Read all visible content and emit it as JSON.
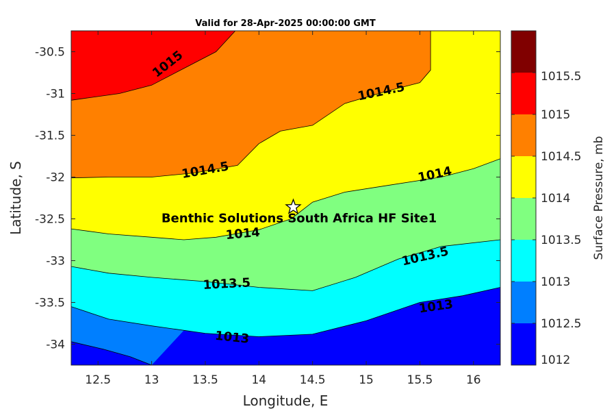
{
  "chart_data": {
    "type": "contour",
    "title": "Valid for 28-Apr-2025 00:00:00 GMT",
    "xlabel": "Longitude, E",
    "ylabel": "Latitude, S",
    "xlim": [
      12.25,
      16.25
    ],
    "ylim": [
      -34.25,
      -30.25
    ],
    "xticks": [
      "12.5",
      "13",
      "13.5",
      "14",
      "14.5",
      "15",
      "15.5",
      "16"
    ],
    "yticks": [
      "-30.5",
      "-31",
      "-31.5",
      "-32",
      "-32.5",
      "-33",
      "-33.5",
      "-34"
    ],
    "colorbar": {
      "label": "Surface Pressure, mb",
      "ticks": [
        "1012",
        "1012.5",
        "1013",
        "1013.5",
        "1014",
        "1014.5",
        "1015",
        "1015.5"
      ],
      "bands": [
        {
          "from": 1012.0,
          "to": 1012.5,
          "color": "#0000ff"
        },
        {
          "from": 1012.5,
          "to": 1013.0,
          "color": "#007fff"
        },
        {
          "from": 1013.0,
          "to": 1013.5,
          "color": "#00ffff"
        },
        {
          "from": 1013.5,
          "to": 1014.0,
          "color": "#80ff80"
        },
        {
          "from": 1014.0,
          "to": 1014.5,
          "color": "#ffff00"
        },
        {
          "from": 1014.5,
          "to": 1015.0,
          "color": "#ff8000"
        },
        {
          "from": 1015.0,
          "to": 1015.5,
          "color": "#ff0000"
        },
        {
          "from": 1015.5,
          "to": 1016.0,
          "color": "#800000"
        }
      ]
    },
    "contours": [
      {
        "level": 1012.5,
        "points": [
          [
            12.25,
            -33.97
          ],
          [
            12.55,
            -34.06
          ],
          [
            12.8,
            -34.15
          ],
          [
            13.0,
            -34.25
          ]
        ]
      },
      {
        "level": 1013.0,
        "points": [
          [
            12.25,
            -33.55
          ],
          [
            12.6,
            -33.7
          ],
          [
            13.0,
            -33.78
          ],
          [
            13.5,
            -33.87
          ],
          [
            14.0,
            -33.91
          ],
          [
            14.5,
            -33.88
          ],
          [
            15.0,
            -33.72
          ],
          [
            15.5,
            -33.5
          ],
          [
            15.9,
            -33.42
          ],
          [
            16.25,
            -33.32
          ]
        ]
      },
      {
        "level": 1013.5,
        "points": [
          [
            12.25,
            -33.07
          ],
          [
            12.6,
            -33.15
          ],
          [
            13.0,
            -33.2
          ],
          [
            13.5,
            -33.25
          ],
          [
            14.0,
            -33.32
          ],
          [
            14.5,
            -33.36
          ],
          [
            14.9,
            -33.2
          ],
          [
            15.3,
            -32.98
          ],
          [
            15.7,
            -32.83
          ],
          [
            16.25,
            -32.75
          ]
        ]
      },
      {
        "level": 1014.0,
        "points": [
          [
            12.25,
            -32.62
          ],
          [
            12.6,
            -32.68
          ],
          [
            13.0,
            -32.72
          ],
          [
            13.3,
            -32.75
          ],
          [
            13.6,
            -32.72
          ],
          [
            14.0,
            -32.63
          ],
          [
            14.3,
            -32.5
          ],
          [
            14.5,
            -32.3
          ],
          [
            14.8,
            -32.18
          ],
          [
            15.2,
            -32.1
          ],
          [
            15.7,
            -32.0
          ],
          [
            16.0,
            -31.9
          ],
          [
            16.25,
            -31.78
          ]
        ]
      },
      {
        "level": 1014.5,
        "points": [
          [
            12.25,
            -32.01
          ],
          [
            12.6,
            -32.0
          ],
          [
            13.0,
            -32.0
          ],
          [
            13.4,
            -31.95
          ],
          [
            13.8,
            -31.86
          ],
          [
            14.0,
            -31.6
          ],
          [
            14.2,
            -31.45
          ],
          [
            14.5,
            -31.38
          ],
          [
            14.8,
            -31.12
          ],
          [
            15.2,
            -30.97
          ],
          [
            15.5,
            -30.87
          ],
          [
            15.6,
            -30.72
          ],
          [
            15.6,
            -30.25
          ]
        ]
      },
      {
        "level": 1015.0,
        "points": [
          [
            12.25,
            -31.08
          ],
          [
            12.7,
            -31.0
          ],
          [
            13.0,
            -30.9
          ],
          [
            13.3,
            -30.7
          ],
          [
            13.6,
            -30.5
          ],
          [
            13.78,
            -30.25
          ]
        ]
      }
    ],
    "contour_labels": [
      {
        "text": "1015",
        "x": 13.15,
        "y": -30.65,
        "angle": -38
      },
      {
        "text": "1014.5",
        "x": 15.14,
        "y": -30.98,
        "angle": -12
      },
      {
        "text": "1014.5",
        "x": 13.5,
        "y": -31.92,
        "angle": -10
      },
      {
        "text": "1014",
        "x": 15.64,
        "y": -31.97,
        "angle": -12
      },
      {
        "text": "1014",
        "x": 13.85,
        "y": -32.68,
        "angle": -5
      },
      {
        "text": "1013.5",
        "x": 15.55,
        "y": -32.95,
        "angle": -13
      },
      {
        "text": "1013.5",
        "x": 13.7,
        "y": -33.28,
        "angle": -3
      },
      {
        "text": "1013",
        "x": 13.75,
        "y": -33.92,
        "angle": 6
      },
      {
        "text": "1013",
        "x": 15.65,
        "y": -33.55,
        "angle": -8
      }
    ],
    "site": {
      "name": "Benthic Solutions South Africa HF Site1",
      "lon": 14.32,
      "lat": -32.36
    }
  }
}
